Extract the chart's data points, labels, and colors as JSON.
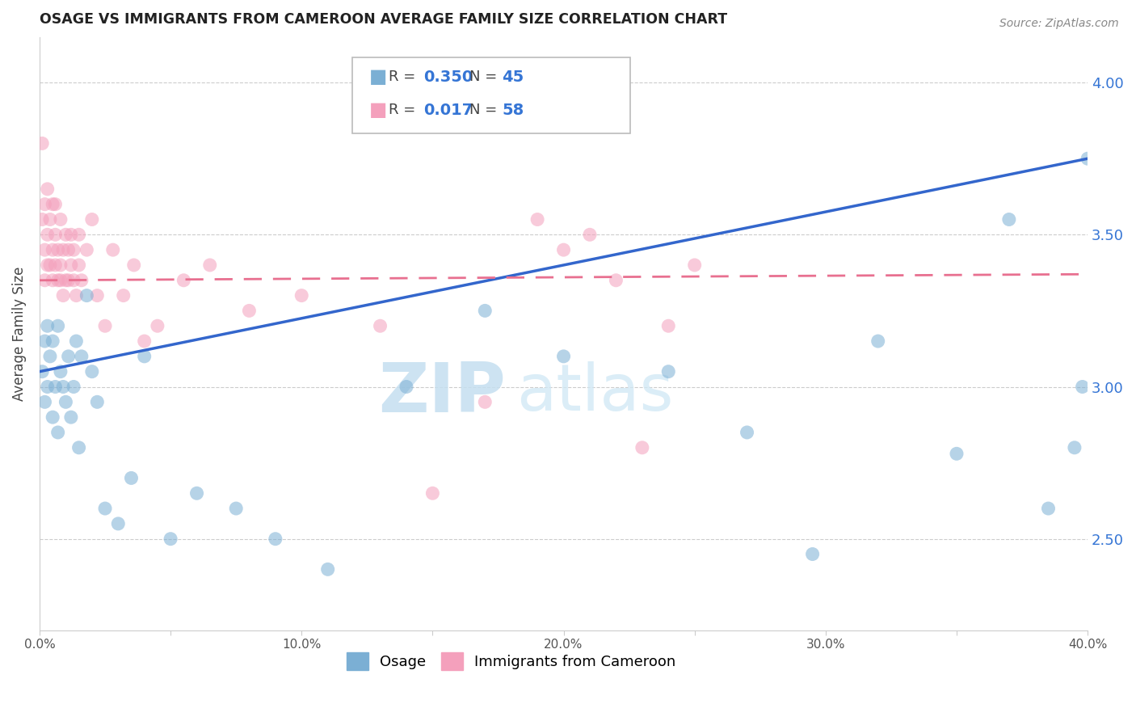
{
  "title": "OSAGE VS IMMIGRANTS FROM CAMEROON AVERAGE FAMILY SIZE CORRELATION CHART",
  "source": "Source: ZipAtlas.com",
  "ylabel": "Average Family Size",
  "xlim": [
    0.0,
    0.4
  ],
  "ylim": [
    2.2,
    4.15
  ],
  "xtick_vals": [
    0.0,
    0.05,
    0.1,
    0.15,
    0.2,
    0.25,
    0.3,
    0.35,
    0.4
  ],
  "xtick_labels": [
    "0.0%",
    "",
    "10.0%",
    "",
    "20.0%",
    "",
    "30.0%",
    "",
    "40.0%"
  ],
  "ytick_vals": [
    2.5,
    3.0,
    3.5,
    4.0
  ],
  "blue_color": "#7bafd4",
  "pink_color": "#f4a0bc",
  "blue_line_color": "#3366cc",
  "pink_line_color": "#e87090",
  "legend_R1": "0.350",
  "legend_N1": "45",
  "legend_R2": "0.017",
  "legend_N2": "58",
  "watermark_zip": "ZIP",
  "watermark_atlas": "atlas",
  "osage_x": [
    0.001,
    0.002,
    0.002,
    0.003,
    0.003,
    0.004,
    0.005,
    0.005,
    0.006,
    0.007,
    0.007,
    0.008,
    0.009,
    0.01,
    0.011,
    0.012,
    0.013,
    0.014,
    0.015,
    0.016,
    0.018,
    0.02,
    0.022,
    0.025,
    0.03,
    0.035,
    0.04,
    0.05,
    0.06,
    0.075,
    0.09,
    0.11,
    0.14,
    0.17,
    0.2,
    0.24,
    0.27,
    0.295,
    0.32,
    0.35,
    0.37,
    0.385,
    0.395,
    0.398,
    0.4
  ],
  "osage_y": [
    3.05,
    3.15,
    2.95,
    3.2,
    3.0,
    3.1,
    2.9,
    3.15,
    3.0,
    3.2,
    2.85,
    3.05,
    3.0,
    2.95,
    3.1,
    2.9,
    3.0,
    3.15,
    2.8,
    3.1,
    3.3,
    3.05,
    2.95,
    2.6,
    2.55,
    2.7,
    3.1,
    2.5,
    2.65,
    2.6,
    2.5,
    2.4,
    3.0,
    3.25,
    3.1,
    3.05,
    2.85,
    2.45,
    3.15,
    2.78,
    3.55,
    2.6,
    2.8,
    3.0,
    3.75
  ],
  "cameroon_x": [
    0.001,
    0.001,
    0.002,
    0.002,
    0.002,
    0.003,
    0.003,
    0.003,
    0.004,
    0.004,
    0.005,
    0.005,
    0.005,
    0.006,
    0.006,
    0.006,
    0.007,
    0.007,
    0.008,
    0.008,
    0.008,
    0.009,
    0.009,
    0.01,
    0.01,
    0.011,
    0.011,
    0.012,
    0.012,
    0.013,
    0.013,
    0.014,
    0.015,
    0.015,
    0.016,
    0.018,
    0.02,
    0.022,
    0.025,
    0.028,
    0.032,
    0.036,
    0.04,
    0.045,
    0.055,
    0.065,
    0.08,
    0.1,
    0.13,
    0.15,
    0.17,
    0.19,
    0.2,
    0.21,
    0.22,
    0.23,
    0.24,
    0.25
  ],
  "cameroon_y": [
    3.8,
    3.55,
    3.35,
    3.6,
    3.45,
    3.5,
    3.65,
    3.4,
    3.55,
    3.4,
    3.45,
    3.6,
    3.35,
    3.5,
    3.4,
    3.6,
    3.45,
    3.35,
    3.55,
    3.4,
    3.35,
    3.45,
    3.3,
    3.5,
    3.35,
    3.45,
    3.35,
    3.4,
    3.5,
    3.35,
    3.45,
    3.3,
    3.5,
    3.4,
    3.35,
    3.45,
    3.55,
    3.3,
    3.2,
    3.45,
    3.3,
    3.4,
    3.15,
    3.2,
    3.35,
    3.4,
    3.25,
    3.3,
    3.2,
    2.65,
    2.95,
    3.55,
    3.45,
    3.5,
    3.35,
    2.8,
    3.2,
    3.4
  ]
}
